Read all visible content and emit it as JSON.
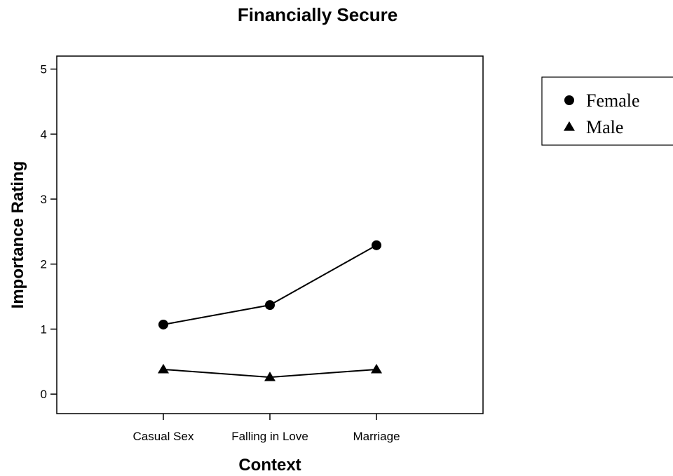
{
  "chart_data": {
    "type": "line",
    "title": "Financially Secure",
    "xlabel": "Context",
    "ylabel": "Importance Rating",
    "categories": [
      "Casual Sex",
      "Falling in Love",
      "Marriage"
    ],
    "ylim": [
      -0.3,
      5.2
    ],
    "yticks": [
      0,
      1,
      2,
      3,
      4,
      5
    ],
    "grid": false,
    "legend_position": "top-right",
    "series": [
      {
        "name": "Female",
        "marker": "circle",
        "values": [
          1.07,
          1.37,
          2.29
        ]
      },
      {
        "name": "Male",
        "marker": "triangle",
        "values": [
          0.38,
          0.26,
          0.38
        ]
      }
    ]
  }
}
